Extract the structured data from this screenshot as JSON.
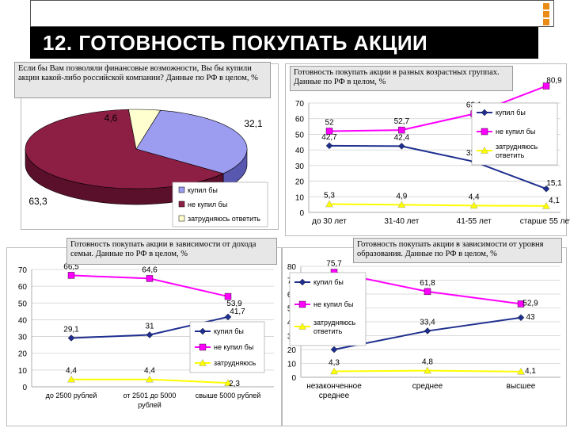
{
  "slide": {
    "title": "12. ГОТОВНОСТЬ ПОКУПАТЬ АКЦИИ",
    "accent_color": "#e98b16"
  },
  "chart_data": [
    {
      "type": "pie",
      "caption": "Если бы Вам позволяли финансовые возможности, Вы бы купили акции какой-либо российской компании? Данные по РФ в целом, %",
      "labels": [
        "купил бы",
        "не купил бы",
        "затрудняюсь ответить"
      ],
      "values": [
        32.1,
        63.3,
        4.6
      ],
      "colors": [
        "#9c9cf0",
        "#8e1f44",
        "#ffffd0"
      ],
      "legend": "bottom-right"
    },
    {
      "type": "line",
      "caption": "Готовность покупать акции в разных возрастных группах. Данные по РФ в целом, %",
      "categories": [
        "до 30 лет",
        "31-40 лет",
        "41-55 лет",
        "старше 55 лет"
      ],
      "ylim": [
        0,
        70
      ],
      "yticks": [
        "0",
        "10",
        "20",
        "30",
        "40",
        "50",
        "60",
        "70"
      ],
      "series": [
        {
          "name": "купил бы",
          "values": [
            42.7,
            42.4,
            32.5,
            15.1
          ],
          "labels": [
            "42,7",
            "42,4",
            "32,5",
            "15,1"
          ],
          "color": "#1f2f8f",
          "marker": "diamond"
        },
        {
          "name": "не купил бы",
          "values": [
            52,
            52.7,
            63.1,
            80.9
          ],
          "labels": [
            "52",
            "52,7",
            "63,1",
            "80,9"
          ],
          "color": "#ff00ff",
          "marker": "square"
        },
        {
          "name": "затрудняюсь ответить",
          "values": [
            5.3,
            4.9,
            4.4,
            4.1
          ],
          "labels": [
            "5,3",
            "4,9",
            "4,4",
            "4,1"
          ],
          "color": "#ffff00",
          "marker": "triangle"
        }
      ],
      "legend_labels": [
        "купил бы",
        "не купил бы",
        "затрудняюсь",
        "ответить"
      ],
      "grid": true
    },
    {
      "type": "line",
      "caption": "Готовность покупать акции в зависимости от дохода семьи. Данные по РФ в целом, %",
      "categories": [
        "до 2500 рублей",
        "от 2501 до 5000 рублей",
        "свыше 5000 рублей"
      ],
      "ylim": [
        0,
        70
      ],
      "yticks": [
        "0",
        "10",
        "20",
        "30",
        "40",
        "50",
        "60",
        "70"
      ],
      "series": [
        {
          "name": "купил бы",
          "values": [
            29.1,
            31,
            41.7
          ],
          "labels": [
            "29,1",
            "31",
            "41,7"
          ],
          "color": "#1f2f8f",
          "marker": "diamond"
        },
        {
          "name": "не купил бы",
          "values": [
            66.5,
            64.6,
            53.9
          ],
          "labels": [
            "66,5",
            "64,6",
            "53,9"
          ],
          "color": "#ff00ff",
          "marker": "square"
        },
        {
          "name": "затрудняюсь",
          "values": [
            4.4,
            4.4,
            2.3
          ],
          "labels": [
            "4,4",
            "4,4",
            "2,3"
          ],
          "color": "#ffff00",
          "marker": "triangle"
        }
      ],
      "grid": true
    },
    {
      "type": "line",
      "caption": "Готовность покупать акции в зависимости от уровня образования. Данные по РФ в целом, %",
      "categories": [
        "незаконченное среднее",
        "среднее",
        "высшее"
      ],
      "ylim": [
        0,
        80
      ],
      "yticks": [
        "0",
        "10",
        "20",
        "30",
        "40",
        "50",
        "60",
        "70",
        "80"
      ],
      "series": [
        {
          "name": "купил бы",
          "values": [
            20,
            33.4,
            43
          ],
          "labels": [
            "20",
            "33,4",
            "43"
          ],
          "color": "#1f2f8f",
          "marker": "diamond"
        },
        {
          "name": "не купил бы",
          "values": [
            75.7,
            61.8,
            52.9
          ],
          "labels": [
            "75,7",
            "61,8",
            "52,9"
          ],
          "color": "#ff00ff",
          "marker": "square"
        },
        {
          "name": "затрудняюсь ответить",
          "values": [
            4.3,
            4.8,
            4.1
          ],
          "labels": [
            "4,3",
            "4,8",
            "4,1"
          ],
          "color": "#ffff00",
          "marker": "triangle"
        }
      ],
      "legend_labels": [
        "купил бы",
        "не купил бы",
        "затрудняюсь",
        "ответить"
      ],
      "grid": true
    }
  ]
}
